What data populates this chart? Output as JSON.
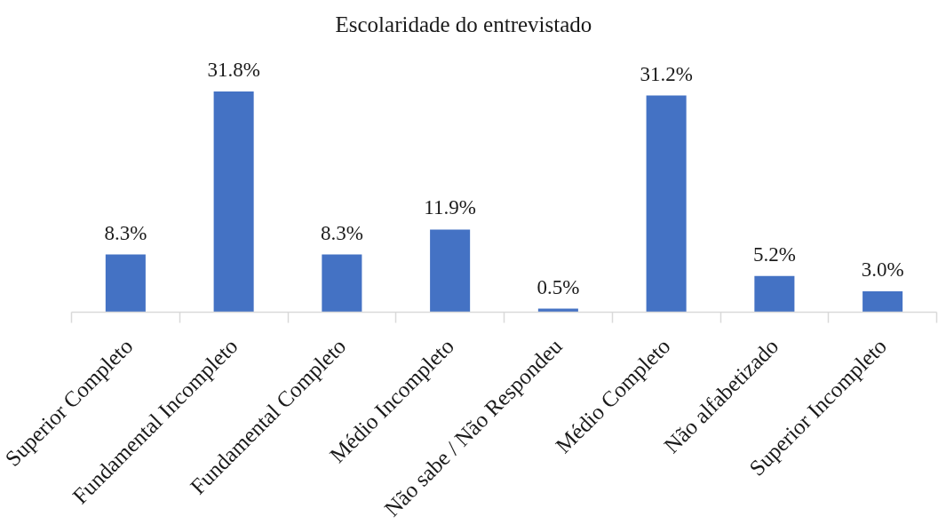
{
  "chart_data": {
    "type": "bar",
    "title": "Escolaridade do entrevistado",
    "categories": [
      "Superior Completo",
      "Fundamental Incompleto",
      "Fundamental Completo",
      "Médio Incompleto",
      "Não sabe / Não Respondeu",
      "Médio Completo",
      "Não alfabetizado",
      "Superior Incompleto"
    ],
    "values": [
      8.3,
      31.8,
      8.3,
      11.9,
      0.5,
      31.2,
      5.2,
      3.0
    ],
    "value_labels": [
      "8.3%",
      "31.8%",
      "8.3%",
      "11.9%",
      "0.5%",
      "31.2%",
      "5.2%",
      "3.0%"
    ],
    "color": "#4472c4",
    "tick_labels": "x"
  }
}
